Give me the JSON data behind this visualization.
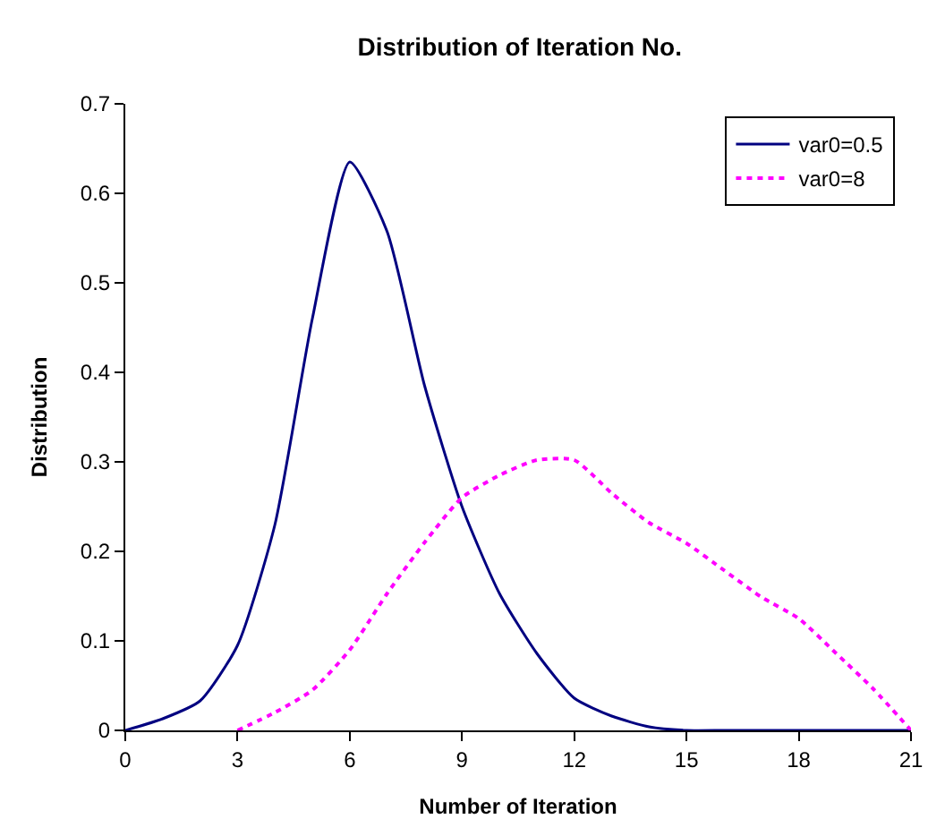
{
  "chart_data": {
    "type": "line",
    "title": "Distribution of Iteration No.",
    "xlabel": "Number of Iteration",
    "ylabel": "Distribution",
    "x": [
      0,
      1,
      2,
      3,
      4,
      5,
      6,
      7,
      8,
      9,
      10,
      11,
      12,
      13,
      14,
      15,
      16,
      17,
      18,
      19,
      20,
      21
    ],
    "series": [
      {
        "name": "var0=0.5",
        "color": "#000080",
        "line_style": "solid",
        "values": [
          0,
          0.013,
          0.033,
          0.095,
          0.23,
          0.46,
          0.635,
          0.557,
          0.385,
          0.25,
          0.153,
          0.086,
          0.036,
          0.016,
          0.004,
          0,
          0,
          0,
          0,
          0,
          0,
          0
        ]
      },
      {
        "name": "var0=8",
        "color": "#ff00ff",
        "line_style": "dotted",
        "values": [
          null,
          null,
          null,
          0,
          0.02,
          0.045,
          0.09,
          0.153,
          0.21,
          0.26,
          0.285,
          0.302,
          0.302,
          0.265,
          0.232,
          0.209,
          0.179,
          0.149,
          0.125,
          0.086,
          0.046,
          0
        ]
      }
    ],
    "xlim": [
      0,
      21
    ],
    "xticks": [
      0,
      3,
      6,
      9,
      12,
      15,
      18,
      21
    ],
    "ylim": [
      0,
      0.7
    ],
    "yticks": [
      0,
      0.1,
      0.2,
      0.3,
      0.4,
      0.5,
      0.6,
      0.7
    ],
    "legend": "top right",
    "marker": "none"
  }
}
